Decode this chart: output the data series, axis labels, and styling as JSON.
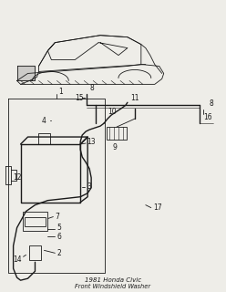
{
  "bg_color": "#eeede8",
  "line_color": "#1a1a1a",
  "fig_width": 2.48,
  "fig_height": 3.2,
  "dpi": 100
}
